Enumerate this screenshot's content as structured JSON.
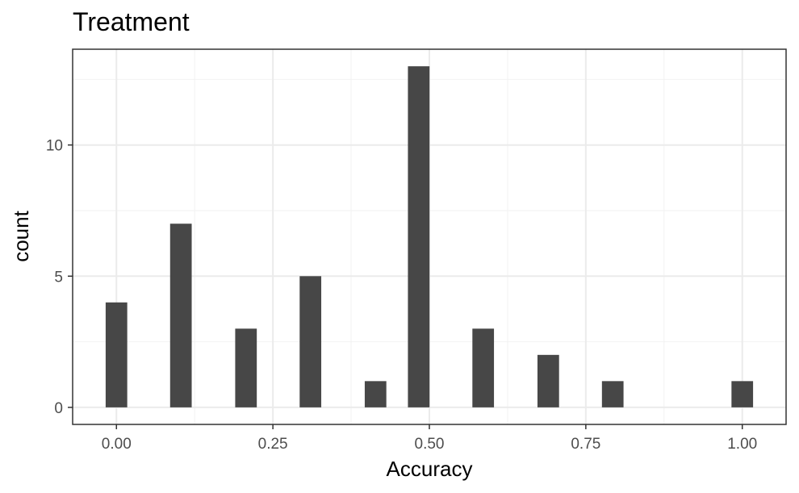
{
  "chart_data": {
    "type": "bar",
    "title": "Treatment",
    "xlabel": "Accuracy",
    "ylabel": "count",
    "xlim": [
      -0.07,
      1.07
    ],
    "ylim": [
      -0.65,
      13.65
    ],
    "x_ticks": [
      0.0,
      0.25,
      0.5,
      0.75,
      1.0
    ],
    "x_tick_labels": [
      "0.00",
      "0.25",
      "0.50",
      "0.75",
      "1.00"
    ],
    "y_ticks": [
      0,
      5,
      10
    ],
    "y_tick_labels": [
      "0",
      "5",
      "10"
    ],
    "bin_width": 0.0345,
    "bars": [
      {
        "x": 0.0,
        "count": 4
      },
      {
        "x": 0.103,
        "count": 7
      },
      {
        "x": 0.207,
        "count": 3
      },
      {
        "x": 0.31,
        "count": 5
      },
      {
        "x": 0.414,
        "count": 1
      },
      {
        "x": 0.483,
        "count": 13
      },
      {
        "x": 0.586,
        "count": 3
      },
      {
        "x": 0.69,
        "count": 2
      },
      {
        "x": 0.793,
        "count": 1
      },
      {
        "x": 1.0,
        "count": 1
      }
    ],
    "bar_color": "#474747",
    "grid": true,
    "legend": "none"
  }
}
